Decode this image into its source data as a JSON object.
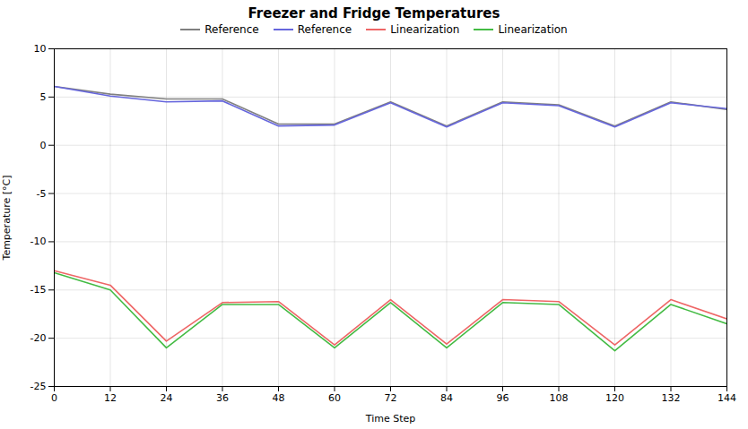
{
  "chart_data": {
    "type": "line",
    "title": "Freezer and Fridge Temperatures",
    "xlabel": "Time Step",
    "ylabel": "Temperature [°C]",
    "x": [
      0,
      12,
      24,
      36,
      48,
      60,
      72,
      84,
      96,
      108,
      120,
      132,
      144
    ],
    "series": [
      {
        "name": "Reference",
        "color": "#808080",
        "values": [
          6.1,
          5.3,
          4.8,
          4.8,
          2.2,
          2.2,
          4.5,
          2.0,
          4.5,
          4.2,
          2.0,
          4.5,
          3.7
        ]
      },
      {
        "name": "Reference",
        "color": "#6666dd",
        "values": [
          6.1,
          5.1,
          4.5,
          4.6,
          2.0,
          2.1,
          4.4,
          1.9,
          4.4,
          4.1,
          1.9,
          4.4,
          3.8
        ]
      },
      {
        "name": "Linearization",
        "color": "#ee6666",
        "values": [
          -13.0,
          -14.5,
          -20.3,
          -16.3,
          -16.2,
          -20.7,
          -16.0,
          -20.6,
          -16.0,
          -16.2,
          -20.7,
          -16.0,
          -18.0
        ]
      },
      {
        "name": "Linearization",
        "color": "#44bb44",
        "values": [
          -13.2,
          -15.0,
          -21.0,
          -16.5,
          -16.5,
          -21.0,
          -16.3,
          -21.0,
          -16.3,
          -16.5,
          -21.3,
          -16.5,
          -18.5
        ]
      }
    ],
    "xlim": [
      0,
      144
    ],
    "xticks": [
      0,
      12,
      24,
      36,
      48,
      60,
      72,
      84,
      96,
      108,
      120,
      132,
      144
    ],
    "ylim": [
      -25,
      10
    ],
    "yticks": [
      -25,
      -20,
      -15,
      -10,
      -5,
      0,
      5,
      10
    ],
    "grid": true,
    "legend": "top"
  }
}
